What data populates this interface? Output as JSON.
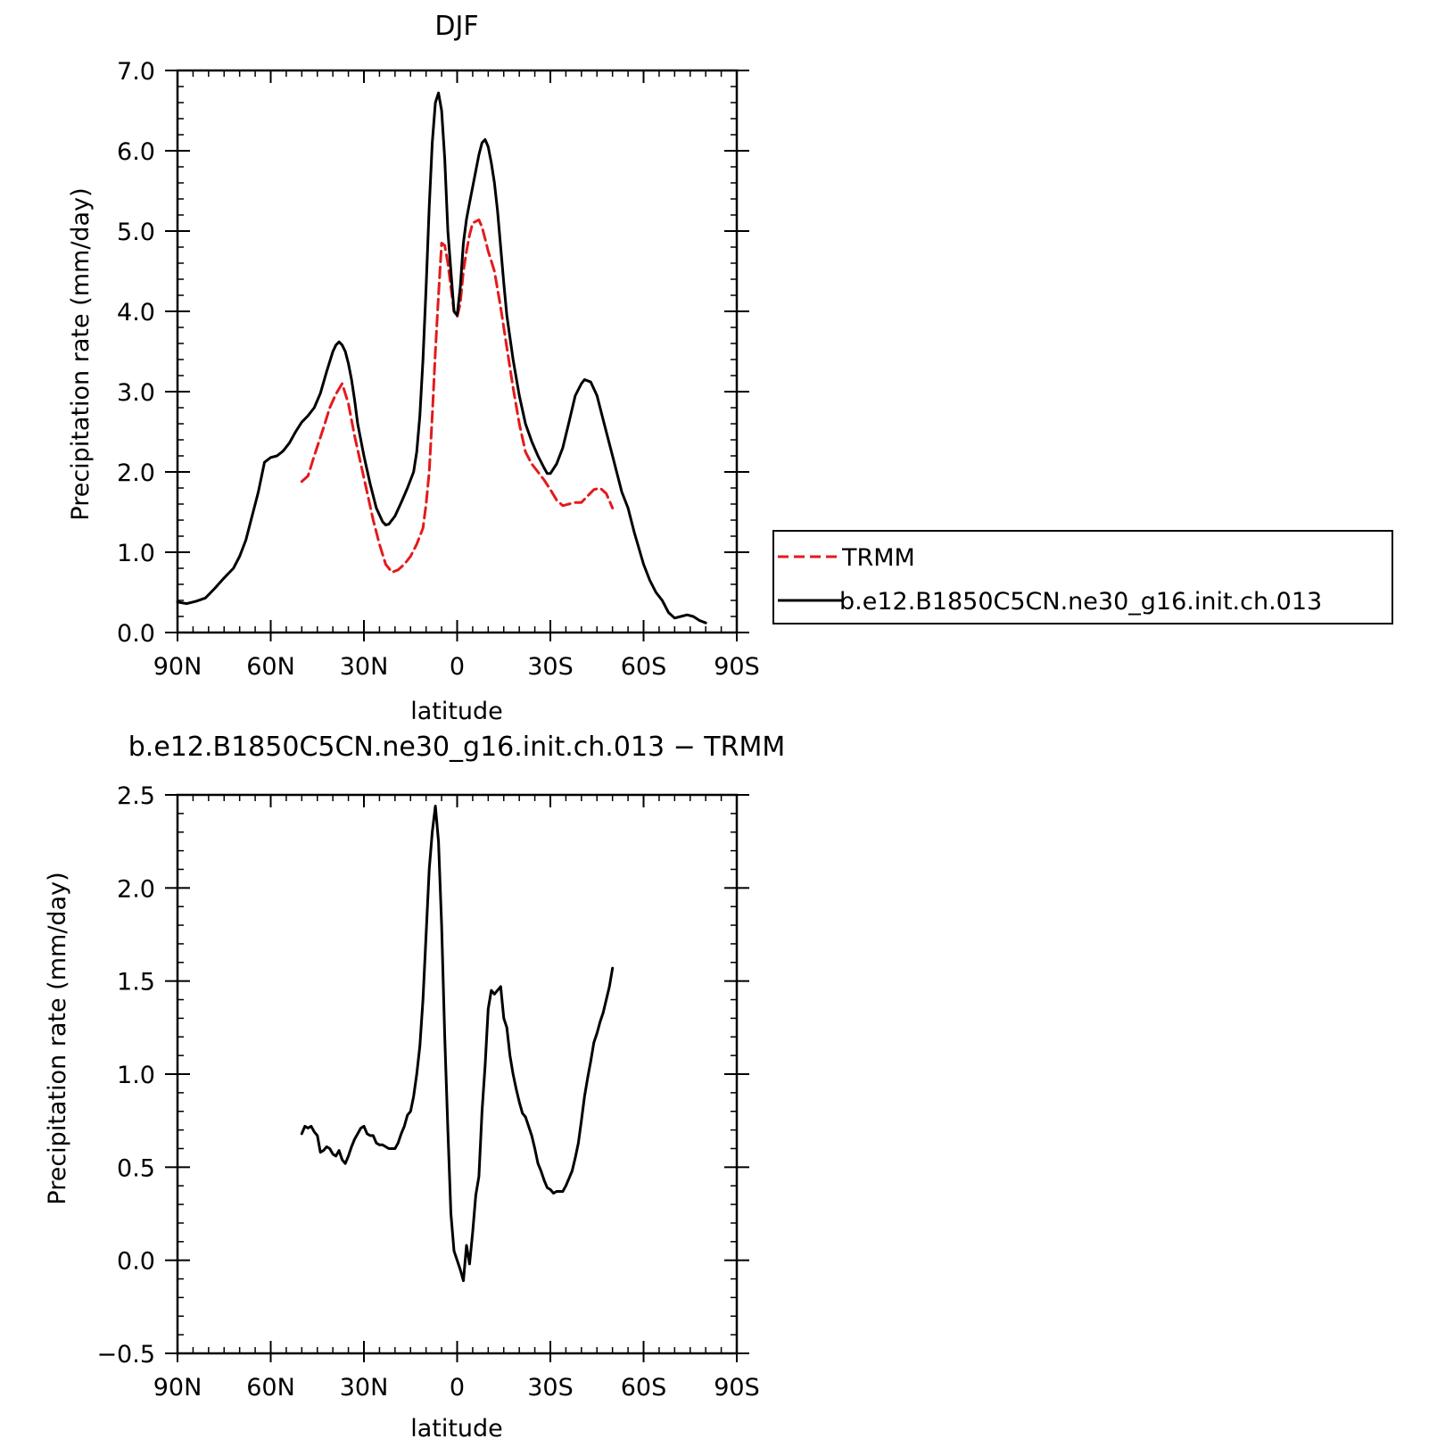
{
  "chart_data": [
    {
      "type": "line",
      "title": "DJF",
      "xlabel": "latitude",
      "ylabel": "Precipitation rate (mm/day)",
      "xlim": [
        90,
        -90
      ],
      "ylim": [
        0.0,
        7.0
      ],
      "x_ticks": [
        90,
        60,
        30,
        0,
        -30,
        -60,
        -90
      ],
      "x_tick_labels": [
        "90N",
        "60N",
        "30N",
        "0",
        "30S",
        "60S",
        "90S"
      ],
      "y_ticks": [
        0.0,
        1.0,
        2.0,
        3.0,
        4.0,
        5.0,
        6.0,
        7.0
      ],
      "y_tick_labels": [
        "0.0",
        "1.0",
        "2.0",
        "3.0",
        "4.0",
        "5.0",
        "6.0",
        "7.0"
      ],
      "grid": false,
      "legend_position": "right",
      "series": [
        {
          "name": "TRMM",
          "color": "#e31a1c",
          "dash": "dashed",
          "points": [
            [
              50,
              1.88
            ],
            [
              48,
              1.95
            ],
            [
              46,
              2.2
            ],
            [
              43,
              2.55
            ],
            [
              41,
              2.8
            ],
            [
              39,
              2.97
            ],
            [
              37,
              3.1
            ],
            [
              35,
              2.85
            ],
            [
              33,
              2.45
            ],
            [
              31,
              2.1
            ],
            [
              29,
              1.75
            ],
            [
              27,
              1.4
            ],
            [
              25,
              1.1
            ],
            [
              23,
              0.85
            ],
            [
              21,
              0.75
            ],
            [
              19,
              0.78
            ],
            [
              17,
              0.85
            ],
            [
              15,
              0.95
            ],
            [
              13,
              1.1
            ],
            [
              11,
              1.3
            ],
            [
              10,
              1.6
            ],
            [
              9,
              2.0
            ],
            [
              8,
              2.7
            ],
            [
              7,
              3.5
            ],
            [
              6,
              4.2
            ],
            [
              5,
              4.85
            ],
            [
              4,
              4.82
            ],
            [
              3,
              4.6
            ],
            [
              2,
              4.3
            ],
            [
              1,
              4.0
            ],
            [
              0,
              3.93
            ],
            [
              -1,
              4.1
            ],
            [
              -2,
              4.5
            ],
            [
              -3,
              4.75
            ],
            [
              -4,
              4.95
            ],
            [
              -5,
              5.1
            ],
            [
              -6,
              5.12
            ],
            [
              -7,
              5.14
            ],
            [
              -8,
              5.05
            ],
            [
              -9,
              4.9
            ],
            [
              -10,
              4.75
            ],
            [
              -12,
              4.5
            ],
            [
              -14,
              4.05
            ],
            [
              -16,
              3.55
            ],
            [
              -18,
              3.05
            ],
            [
              -20,
              2.6
            ],
            [
              -22,
              2.25
            ],
            [
              -24,
              2.1
            ],
            [
              -26,
              2.0
            ],
            [
              -28,
              1.9
            ],
            [
              -30,
              1.78
            ],
            [
              -32,
              1.65
            ],
            [
              -34,
              1.58
            ],
            [
              -36,
              1.6
            ],
            [
              -38,
              1.62
            ],
            [
              -40,
              1.62
            ],
            [
              -42,
              1.7
            ],
            [
              -44,
              1.78
            ],
            [
              -46,
              1.8
            ],
            [
              -48,
              1.73
            ],
            [
              -50,
              1.55
            ]
          ]
        },
        {
          "name": "b.e12.B1850C5CN.ne30_g16.init.ch.013",
          "color": "#000000",
          "dash": "solid",
          "points": [
            [
              90,
              0.38
            ],
            [
              87,
              0.36
            ],
            [
              84,
              0.39
            ],
            [
              81,
              0.43
            ],
            [
              78,
              0.55
            ],
            [
              75,
              0.68
            ],
            [
              72,
              0.8
            ],
            [
              70,
              0.95
            ],
            [
              68,
              1.15
            ],
            [
              66,
              1.45
            ],
            [
              64,
              1.75
            ],
            [
              62,
              2.12
            ],
            [
              60,
              2.18
            ],
            [
              58,
              2.2
            ],
            [
              56,
              2.26
            ],
            [
              54,
              2.36
            ],
            [
              52,
              2.5
            ],
            [
              50,
              2.62
            ],
            [
              48,
              2.7
            ],
            [
              46,
              2.8
            ],
            [
              44,
              2.98
            ],
            [
              42,
              3.25
            ],
            [
              40,
              3.5
            ],
            [
              39,
              3.58
            ],
            [
              38,
              3.62
            ],
            [
              37,
              3.58
            ],
            [
              36,
              3.5
            ],
            [
              35,
              3.35
            ],
            [
              34,
              3.15
            ],
            [
              33,
              2.9
            ],
            [
              32,
              2.6
            ],
            [
              30,
              2.2
            ],
            [
              28,
              1.85
            ],
            [
              26,
              1.55
            ],
            [
              24,
              1.38
            ],
            [
              23,
              1.34
            ],
            [
              22,
              1.35
            ],
            [
              20,
              1.45
            ],
            [
              18,
              1.62
            ],
            [
              16,
              1.8
            ],
            [
              14,
              2.0
            ],
            [
              13,
              2.25
            ],
            [
              12,
              2.7
            ],
            [
              11,
              3.4
            ],
            [
              10,
              4.3
            ],
            [
              9,
              5.3
            ],
            [
              8,
              6.1
            ],
            [
              7,
              6.6
            ],
            [
              6,
              6.72
            ],
            [
              5,
              6.5
            ],
            [
              4,
              5.9
            ],
            [
              3,
              5.0
            ],
            [
              2,
              4.5
            ],
            [
              1,
              4.0
            ],
            [
              0,
              3.95
            ],
            [
              -1,
              4.3
            ],
            [
              -2,
              4.85
            ],
            [
              -3,
              5.15
            ],
            [
              -4,
              5.35
            ],
            [
              -5,
              5.55
            ],
            [
              -6,
              5.75
            ],
            [
              -7,
              5.95
            ],
            [
              -8,
              6.1
            ],
            [
              -9,
              6.14
            ],
            [
              -10,
              6.05
            ],
            [
              -11,
              5.85
            ],
            [
              -12,
              5.6
            ],
            [
              -13,
              5.25
            ],
            [
              -14,
              4.8
            ],
            [
              -15,
              4.35
            ],
            [
              -16,
              3.95
            ],
            [
              -18,
              3.4
            ],
            [
              -20,
              2.95
            ],
            [
              -22,
              2.6
            ],
            [
              -24,
              2.38
            ],
            [
              -26,
              2.2
            ],
            [
              -28,
              2.05
            ],
            [
              -29,
              1.98
            ],
            [
              -30,
              1.98
            ],
            [
              -32,
              2.1
            ],
            [
              -34,
              2.3
            ],
            [
              -36,
              2.62
            ],
            [
              -38,
              2.95
            ],
            [
              -40,
              3.1
            ],
            [
              -41,
              3.15
            ],
            [
              -43,
              3.12
            ],
            [
              -45,
              2.95
            ],
            [
              -47,
              2.65
            ],
            [
              -50,
              2.2
            ],
            [
              -53,
              1.75
            ],
            [
              -55,
              1.55
            ],
            [
              -57,
              1.25
            ],
            [
              -60,
              0.85
            ],
            [
              -62,
              0.65
            ],
            [
              -64,
              0.5
            ],
            [
              -66,
              0.4
            ],
            [
              -68,
              0.25
            ],
            [
              -70,
              0.18
            ],
            [
              -72,
              0.2
            ],
            [
              -74,
              0.22
            ],
            [
              -76,
              0.2
            ],
            [
              -78,
              0.15
            ],
            [
              -80,
              0.12
            ]
          ]
        }
      ]
    },
    {
      "type": "line",
      "title": "b.e12.B1850C5CN.ne30_g16.init.ch.013 − TRMM",
      "xlabel": "latitude",
      "ylabel": "Precipitation rate (mm/day)",
      "xlim": [
        90,
        -90
      ],
      "ylim": [
        -0.5,
        2.5
      ],
      "x_ticks": [
        90,
        60,
        30,
        0,
        -30,
        -60,
        -90
      ],
      "x_tick_labels": [
        "90N",
        "60N",
        "30N",
        "0",
        "30S",
        "60S",
        "90S"
      ],
      "y_ticks": [
        -0.5,
        0.0,
        0.5,
        1.0,
        1.5,
        2.0,
        2.5
      ],
      "y_tick_labels": [
        "−0.5",
        "0.0",
        "0.5",
        "1.0",
        "1.5",
        "2.0",
        "2.5"
      ],
      "grid": false,
      "series": [
        {
          "color": "#000000",
          "dash": "solid",
          "points": [
            [
              50,
              0.68
            ],
            [
              49,
              0.72
            ],
            [
              48,
              0.71
            ],
            [
              47,
              0.72
            ],
            [
              46,
              0.69
            ],
            [
              45,
              0.67
            ],
            [
              44,
              0.58
            ],
            [
              43,
              0.59
            ],
            [
              42,
              0.61
            ],
            [
              41,
              0.6
            ],
            [
              40,
              0.57
            ],
            [
              39,
              0.56
            ],
            [
              38,
              0.59
            ],
            [
              37,
              0.54
            ],
            [
              36,
              0.52
            ],
            [
              35,
              0.56
            ],
            [
              34,
              0.61
            ],
            [
              33,
              0.65
            ],
            [
              32,
              0.68
            ],
            [
              31,
              0.71
            ],
            [
              30,
              0.72
            ],
            [
              29,
              0.68
            ],
            [
              28,
              0.67
            ],
            [
              27,
              0.67
            ],
            [
              26,
              0.63
            ],
            [
              25,
              0.62
            ],
            [
              24,
              0.62
            ],
            [
              23,
              0.61
            ],
            [
              22,
              0.6
            ],
            [
              21,
              0.6
            ],
            [
              20,
              0.6
            ],
            [
              19,
              0.63
            ],
            [
              18,
              0.68
            ],
            [
              17,
              0.72
            ],
            [
              16,
              0.78
            ],
            [
              15,
              0.8
            ],
            [
              14,
              0.88
            ],
            [
              13,
              1.0
            ],
            [
              12,
              1.15
            ],
            [
              11,
              1.4
            ],
            [
              10,
              1.75
            ],
            [
              9,
              2.1
            ],
            [
              8,
              2.3
            ],
            [
              7,
              2.44
            ],
            [
              6,
              2.25
            ],
            [
              5,
              1.8
            ],
            [
              4,
              1.2
            ],
            [
              3,
              0.7
            ],
            [
              2,
              0.25
            ],
            [
              1,
              0.05
            ],
            [
              0,
              0.0
            ],
            [
              -1,
              -0.05
            ],
            [
              -2,
              -0.11
            ],
            [
              -3,
              0.08
            ],
            [
              -4,
              -0.02
            ],
            [
              -5,
              0.15
            ],
            [
              -6,
              0.35
            ],
            [
              -7,
              0.45
            ],
            [
              -8,
              0.8
            ],
            [
              -9,
              1.05
            ],
            [
              -10,
              1.35
            ],
            [
              -11,
              1.45
            ],
            [
              -12,
              1.43
            ],
            [
              -13,
              1.45
            ],
            [
              -14,
              1.47
            ],
            [
              -15,
              1.3
            ],
            [
              -16,
              1.25
            ],
            [
              -17,
              1.1
            ],
            [
              -18,
              1.0
            ],
            [
              -19,
              0.92
            ],
            [
              -20,
              0.85
            ],
            [
              -21,
              0.79
            ],
            [
              -22,
              0.77
            ],
            [
              -23,
              0.72
            ],
            [
              -24,
              0.67
            ],
            [
              -25,
              0.6
            ],
            [
              -26,
              0.52
            ],
            [
              -27,
              0.48
            ],
            [
              -28,
              0.43
            ],
            [
              -29,
              0.39
            ],
            [
              -30,
              0.38
            ],
            [
              -31,
              0.36
            ],
            [
              -32,
              0.37
            ],
            [
              -33,
              0.37
            ],
            [
              -34,
              0.37
            ],
            [
              -35,
              0.4
            ],
            [
              -36,
              0.44
            ],
            [
              -37,
              0.48
            ],
            [
              -38,
              0.55
            ],
            [
              -39,
              0.63
            ],
            [
              -40,
              0.75
            ],
            [
              -41,
              0.88
            ],
            [
              -42,
              0.98
            ],
            [
              -43,
              1.07
            ],
            [
              -44,
              1.17
            ],
            [
              -45,
              1.22
            ],
            [
              -46,
              1.28
            ],
            [
              -47,
              1.33
            ],
            [
              -48,
              1.4
            ],
            [
              -49,
              1.47
            ],
            [
              -50,
              1.57
            ]
          ]
        }
      ]
    }
  ]
}
